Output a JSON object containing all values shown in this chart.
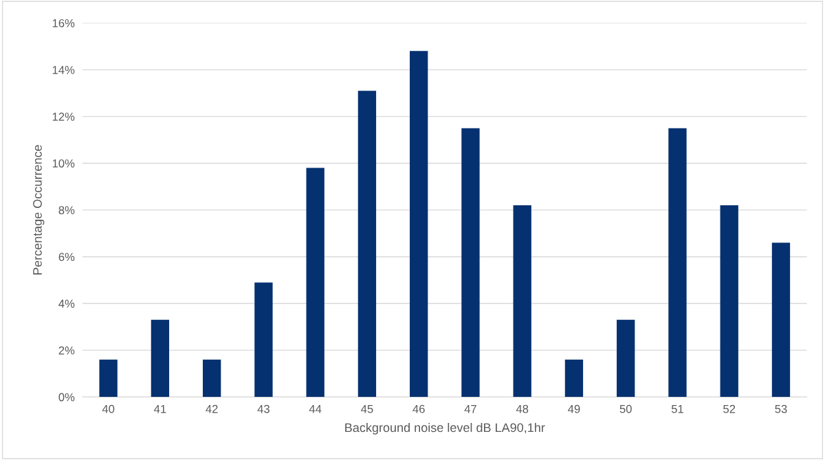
{
  "chart_data": {
    "type": "bar",
    "xlabel": "Background noise level dB LA90,1hr",
    "ylabel": "Percentage Occurrence",
    "categories": [
      "40",
      "41",
      "42",
      "43",
      "44",
      "45",
      "46",
      "47",
      "48",
      "49",
      "50",
      "51",
      "52",
      "53"
    ],
    "values": [
      1.6,
      3.3,
      1.6,
      4.9,
      9.8,
      13.1,
      14.8,
      11.5,
      8.2,
      1.6,
      3.3,
      11.5,
      8.2,
      6.6
    ],
    "color": "#063170",
    "ylim": [
      0,
      16
    ],
    "yticks": [
      {
        "value": 0,
        "label": "0%"
      },
      {
        "value": 2,
        "label": "2%"
      },
      {
        "value": 4,
        "label": "4%"
      },
      {
        "value": 6,
        "label": "6%"
      },
      {
        "value": 8,
        "label": "8%"
      },
      {
        "value": 10,
        "label": "10%"
      },
      {
        "value": 12,
        "label": "12%"
      },
      {
        "value": 14,
        "label": "14%"
      },
      {
        "value": 16,
        "label": "16%"
      }
    ],
    "grid": "y",
    "legend": false
  }
}
